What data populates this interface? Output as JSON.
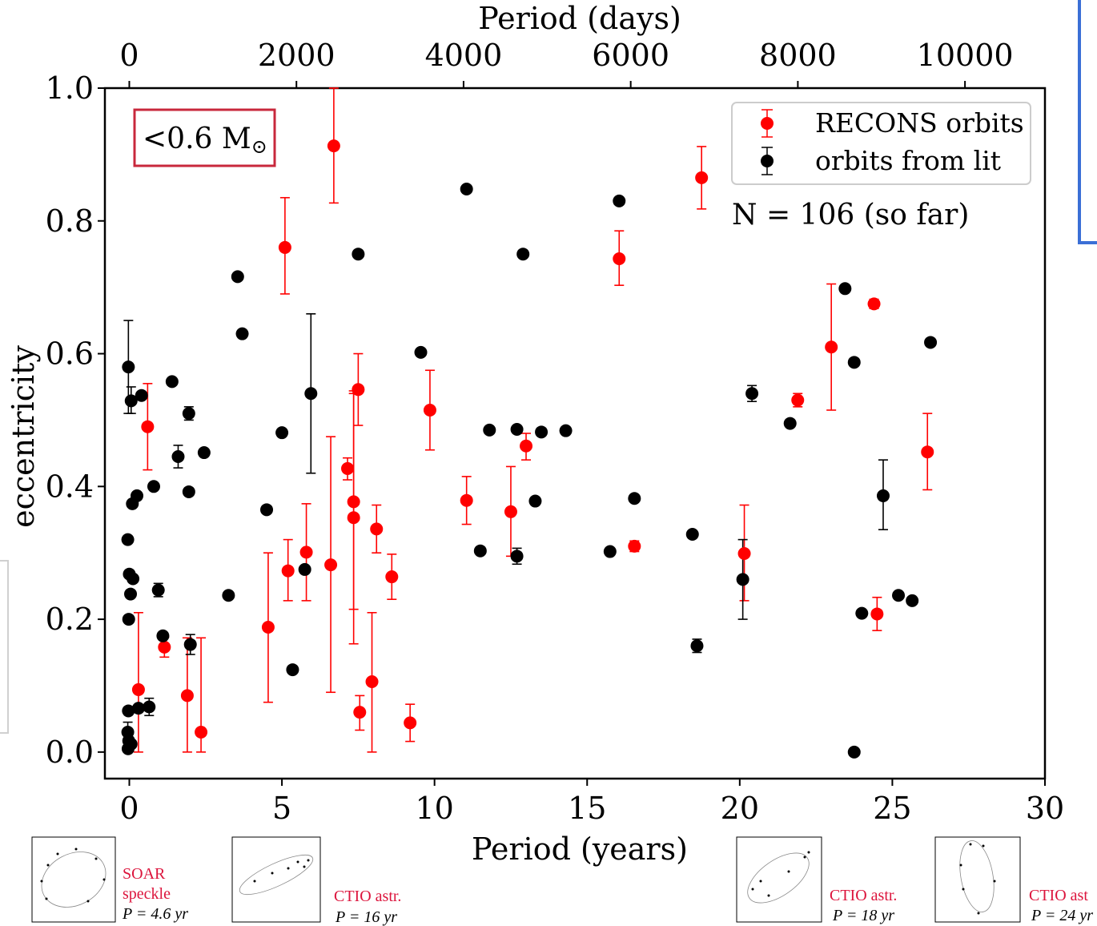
{
  "chart_data": {
    "type": "scatter",
    "xlabel": "Period (years)",
    "ylabel": "eccentricity",
    "top_xlabel": "Period (days)",
    "xlim": [
      -0.8,
      30
    ],
    "ylim": [
      -0.04,
      1.0
    ],
    "top_xlim_days": [
      -292,
      10957
    ],
    "x_ticks": [
      0,
      5,
      10,
      15,
      20,
      25,
      30
    ],
    "y_ticks": [
      "0.0",
      "0.2",
      "0.4",
      "0.6",
      "0.8",
      "1.0"
    ],
    "top_x_ticks": [
      0,
      2000,
      4000,
      6000,
      8000,
      10000
    ],
    "grid": false,
    "legend_placement": "top-right",
    "annotation": "N = 106 (so far)",
    "mass_label": "<0.6 M",
    "mass_label_symbol": "⊙",
    "series": [
      {
        "name": "RECONS orbits",
        "color": "#ff0000",
        "points": [
          {
            "x": 0.3,
            "y": 0.094,
            "lo": 0.0,
            "hi": 0.21
          },
          {
            "x": 0.6,
            "y": 0.49,
            "lo": 0.425,
            "hi": 0.555
          },
          {
            "x": 1.15,
            "y": 0.158,
            "lo": 0.143,
            "hi": 0.173
          },
          {
            "x": 1.9,
            "y": 0.085,
            "lo": 0.0,
            "hi": 0.172
          },
          {
            "x": 2.35,
            "y": 0.03,
            "lo": 0.0,
            "hi": 0.172
          },
          {
            "x": 4.55,
            "y": 0.188,
            "lo": 0.075,
            "hi": 0.3
          },
          {
            "x": 5.1,
            "y": 0.76,
            "lo": 0.69,
            "hi": 0.835
          },
          {
            "x": 5.2,
            "y": 0.273,
            "lo": 0.228,
            "hi": 0.32
          },
          {
            "x": 5.8,
            "y": 0.301,
            "lo": 0.228,
            "hi": 0.374
          },
          {
            "x": 6.6,
            "y": 0.282,
            "lo": 0.09,
            "hi": 0.475
          },
          {
            "x": 6.7,
            "y": 0.913,
            "lo": 0.827,
            "hi": 1.0
          },
          {
            "x": 7.15,
            "y": 0.427,
            "lo": 0.41,
            "hi": 0.443
          },
          {
            "x": 7.35,
            "y": 0.377,
            "lo": 0.215,
            "hi": 0.54
          },
          {
            "x": 7.35,
            "y": 0.353,
            "lo": 0.163,
            "hi": 0.544
          },
          {
            "x": 7.5,
            "y": 0.546,
            "lo": 0.492,
            "hi": 0.6
          },
          {
            "x": 7.55,
            "y": 0.06,
            "lo": 0.033,
            "hi": 0.085
          },
          {
            "x": 7.95,
            "y": 0.106,
            "lo": 0.0,
            "hi": 0.21
          },
          {
            "x": 8.1,
            "y": 0.336,
            "lo": 0.3,
            "hi": 0.372
          },
          {
            "x": 8.6,
            "y": 0.264,
            "lo": 0.23,
            "hi": 0.298
          },
          {
            "x": 9.2,
            "y": 0.044,
            "lo": 0.016,
            "hi": 0.072
          },
          {
            "x": 9.85,
            "y": 0.515,
            "lo": 0.455,
            "hi": 0.575
          },
          {
            "x": 11.05,
            "y": 0.379,
            "lo": 0.343,
            "hi": 0.415
          },
          {
            "x": 12.5,
            "y": 0.362,
            "lo": 0.295,
            "hi": 0.43
          },
          {
            "x": 13.0,
            "y": 0.461,
            "lo": 0.44,
            "hi": 0.48
          },
          {
            "x": 16.05,
            "y": 0.743,
            "lo": 0.703,
            "hi": 0.785
          },
          {
            "x": 16.55,
            "y": 0.31,
            "lo": 0.302,
            "hi": 0.318
          },
          {
            "x": 18.75,
            "y": 0.865,
            "lo": 0.818,
            "hi": 0.912
          },
          {
            "x": 20.15,
            "y": 0.299,
            "lo": 0.228,
            "hi": 0.372
          },
          {
            "x": 21.9,
            "y": 0.53,
            "lo": 0.52,
            "hi": 0.54
          },
          {
            "x": 23.0,
            "y": 0.61,
            "lo": 0.515,
            "hi": 0.705
          },
          {
            "x": 24.4,
            "y": 0.675,
            "lo": 0.668,
            "hi": 0.682
          },
          {
            "x": 24.5,
            "y": 0.208,
            "lo": 0.183,
            "hi": 0.233
          },
          {
            "x": 26.15,
            "y": 0.452,
            "lo": 0.395,
            "hi": 0.51
          }
        ]
      },
      {
        "name": "orbits from lit",
        "color": "#000000",
        "points": [
          {
            "x": -0.03,
            "y": 0.58,
            "lo": 0.51,
            "hi": 0.65
          },
          {
            "x": 0.06,
            "y": 0.529,
            "lo": 0.51,
            "hi": 0.55
          },
          {
            "x": 0.4,
            "y": 0.537
          },
          {
            "x": 0.1,
            "y": 0.374
          },
          {
            "x": 0.25,
            "y": 0.386
          },
          {
            "x": 0.8,
            "y": 0.4
          },
          {
            "x": -0.05,
            "y": 0.32
          },
          {
            "x": 0.0,
            "y": 0.268
          },
          {
            "x": 0.12,
            "y": 0.261
          },
          {
            "x": 0.04,
            "y": 0.238
          },
          {
            "x": 0.95,
            "y": 0.244,
            "lo": 0.234,
            "hi": 0.254
          },
          {
            "x": -0.02,
            "y": 0.2
          },
          {
            "x": 1.1,
            "y": 0.175
          },
          {
            "x": -0.03,
            "y": 0.062
          },
          {
            "x": 0.3,
            "y": 0.066
          },
          {
            "x": 0.65,
            "y": 0.068,
            "lo": 0.055,
            "hi": 0.081
          },
          {
            "x": -0.05,
            "y": 0.03,
            "lo": 0.0,
            "hi": 0.045
          },
          {
            "x": -0.02,
            "y": 0.017
          },
          {
            "x": 0.06,
            "y": 0.012
          },
          {
            "x": -0.04,
            "y": 0.005
          },
          {
            "x": 1.4,
            "y": 0.558
          },
          {
            "x": 1.6,
            "y": 0.445,
            "lo": 0.428,
            "hi": 0.462
          },
          {
            "x": 1.95,
            "y": 0.51,
            "lo": 0.5,
            "hi": 0.52
          },
          {
            "x": 1.95,
            "y": 0.392
          },
          {
            "x": 2.45,
            "y": 0.451
          },
          {
            "x": 2.0,
            "y": 0.162,
            "lo": 0.147,
            "hi": 0.177
          },
          {
            "x": 3.25,
            "y": 0.236
          },
          {
            "x": 3.55,
            "y": 0.716
          },
          {
            "x": 3.7,
            "y": 0.63
          },
          {
            "x": 4.5,
            "y": 0.365
          },
          {
            "x": 5.0,
            "y": 0.481
          },
          {
            "x": 5.35,
            "y": 0.124
          },
          {
            "x": 5.75,
            "y": 0.275
          },
          {
            "x": 5.95,
            "y": 0.54,
            "lo": 0.42,
            "hi": 0.66
          },
          {
            "x": 7.5,
            "y": 0.75
          },
          {
            "x": 9.55,
            "y": 0.602
          },
          {
            "x": 11.05,
            "y": 0.848
          },
          {
            "x": 11.5,
            "y": 0.303
          },
          {
            "x": 11.8,
            "y": 0.485
          },
          {
            "x": 12.7,
            "y": 0.486
          },
          {
            "x": 12.7,
            "y": 0.295,
            "lo": 0.283,
            "hi": 0.307
          },
          {
            "x": 12.9,
            "y": 0.75
          },
          {
            "x": 13.3,
            "y": 0.378
          },
          {
            "x": 13.5,
            "y": 0.482
          },
          {
            "x": 14.3,
            "y": 0.484
          },
          {
            "x": 15.75,
            "y": 0.302
          },
          {
            "x": 16.05,
            "y": 0.83
          },
          {
            "x": 16.55,
            "y": 0.382
          },
          {
            "x": 18.45,
            "y": 0.328
          },
          {
            "x": 18.6,
            "y": 0.16,
            "lo": 0.15,
            "hi": 0.17
          },
          {
            "x": 20.1,
            "y": 0.26,
            "lo": 0.2,
            "hi": 0.32
          },
          {
            "x": 20.4,
            "y": 0.54,
            "lo": 0.528,
            "hi": 0.552
          },
          {
            "x": 21.65,
            "y": 0.495
          },
          {
            "x": 23.45,
            "y": 0.698
          },
          {
            "x": 23.75,
            "y": 0.587
          },
          {
            "x": 23.75,
            "y": 0.0
          },
          {
            "x": 24.0,
            "y": 0.209
          },
          {
            "x": 24.7,
            "y": 0.386,
            "lo": 0.335,
            "hi": 0.44
          },
          {
            "x": 25.2,
            "y": 0.236
          },
          {
            "x": 25.65,
            "y": 0.228
          },
          {
            "x": 26.25,
            "y": 0.617
          }
        ]
      }
    ]
  },
  "thumbnails": [
    {
      "method_line1": "SOAR",
      "method_line2": "speckle",
      "period": "P = 4.6 yr"
    },
    {
      "method_line1": "CTIO astr.",
      "method_line2": "",
      "period": "P = 16 yr"
    },
    {
      "method_line1": "CTIO astr.",
      "method_line2": "",
      "period": "P = 18 yr"
    },
    {
      "method_line1": "CTIO ast",
      "method_line2": "",
      "period": "P = 24 yr"
    }
  ],
  "colors": {
    "recons": "#ff0000",
    "lit": "#000000",
    "label_box_border": "#c8283c",
    "side_panel_border": "#3b6fd6",
    "caption_red": "#dc143c"
  }
}
